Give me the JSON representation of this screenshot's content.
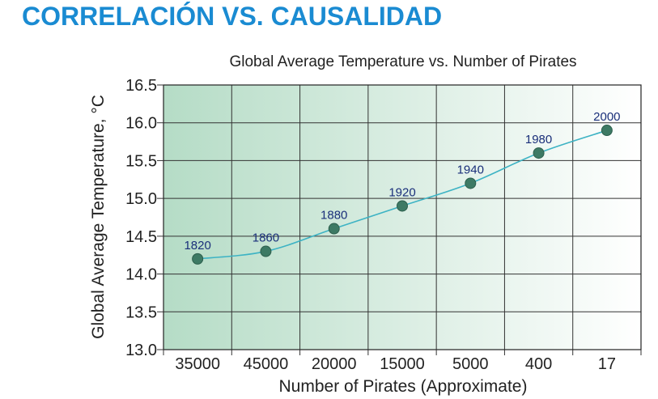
{
  "page": {
    "heading": "CORRELACIÓN VS. CAUSALIDAD"
  },
  "colors": {
    "heading": "#1a8bd2",
    "line": "#3db3c4",
    "marker": "#3d7a64",
    "point_label": "#1a2f7a",
    "background_gradient_start": "#b5dcc6",
    "background_gradient_end": "#ffffff"
  },
  "chart_data": {
    "type": "line",
    "title": "Global Average Temperature vs. Number of Pirates",
    "xlabel": "Number of Pirates (Approximate)",
    "ylabel": "Global Average Temperature, °C",
    "categories": [
      "35000",
      "45000",
      "20000",
      "15000",
      "5000",
      "400",
      "17"
    ],
    "ylim": [
      13.0,
      16.5
    ],
    "yticks": [
      "13.0",
      "13.5",
      "14.0",
      "14.5",
      "15.0",
      "15.5",
      "16.0",
      "16.5"
    ],
    "grid": true,
    "series": [
      {
        "values": [
          14.2,
          14.3,
          14.6,
          14.9,
          15.2,
          15.6,
          15.9
        ],
        "point_labels": [
          "1820",
          "1860",
          "1880",
          "1920",
          "1940",
          "1980",
          "2000"
        ]
      }
    ]
  }
}
